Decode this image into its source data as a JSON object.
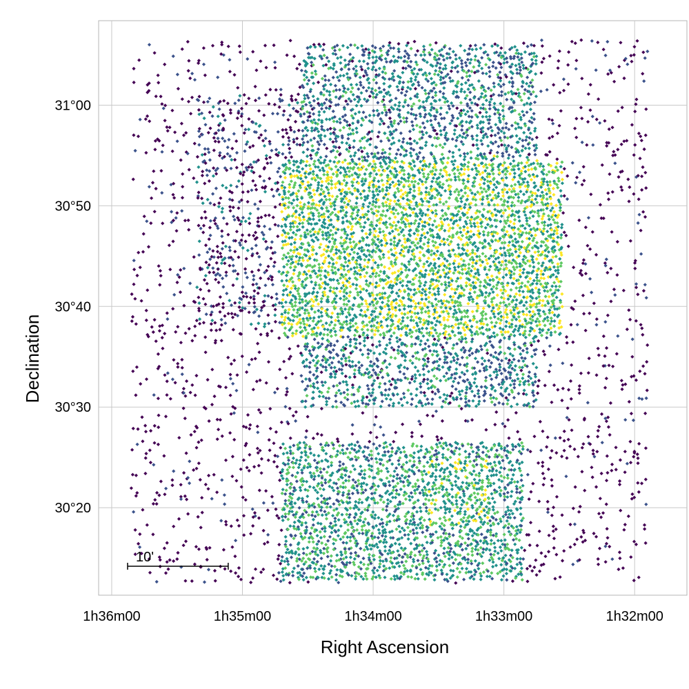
{
  "chart_data": {
    "type": "scatter",
    "title": "",
    "xlabel": "Right Ascension",
    "ylabel": "Declination",
    "x_axis_inverted": true,
    "x_ticks": [
      {
        "value_min": 96,
        "label": "1h36m00"
      },
      {
        "value_min": 95,
        "label": "1h35m00"
      },
      {
        "value_min": 94,
        "label": "1h34m00"
      },
      {
        "value_min": 93,
        "label": "1h33m00"
      },
      {
        "value_min": 92,
        "label": "1h32m00"
      }
    ],
    "y_ticks": [
      {
        "value_arcmin": 1860,
        "label": "31°00"
      },
      {
        "value_arcmin": 1850,
        "label": "30°50"
      },
      {
        "value_arcmin": 1840,
        "label": "30°40"
      },
      {
        "value_arcmin": 1830,
        "label": "30°30"
      },
      {
        "value_arcmin": 1820,
        "label": "30°20"
      }
    ],
    "xlim_min": [
      96.1,
      91.6
    ],
    "ylim_arcmin": [
      1811.3,
      1868.4
    ],
    "grid": true,
    "colormap": "viridis",
    "colors": [
      "#440154",
      "#3b528b",
      "#21918c",
      "#5ec962",
      "#fde725"
    ],
    "density_regions": [
      {
        "ra_min": [
          95.85,
          91.9
        ],
        "dec_arcmin": [
          1812.5,
          1866.5
        ],
        "density": 0.1
      },
      {
        "ra_min": [
          95.35,
          94.15
        ],
        "dec_arcmin": [
          1838,
          1861
        ],
        "density": 0.35
      },
      {
        "ra_min": [
          94.55,
          92.75
        ],
        "dec_arcmin": [
          1830,
          1866
        ],
        "density": 0.6
      },
      {
        "ra_min": [
          94.1,
          93.6
        ],
        "dec_arcmin": [
          1856,
          1866
        ],
        "density": 0.55
      },
      {
        "ra_min": [
          94.7,
          92.55
        ],
        "dec_arcmin": [
          1837,
          1854.5
        ],
        "density": 0.85
      },
      {
        "ra_min": [
          93.4,
          92.95
        ],
        "dec_arcmin": [
          1842,
          1855
        ],
        "density": 0.75
      },
      {
        "ra_min": [
          94.7,
          92.85
        ],
        "dec_arcmin": [
          1812.8,
          1826.5
        ],
        "density": 0.7
      },
      {
        "ra_min": [
          93.6,
          93.1
        ],
        "dec_arcmin": [
          1818,
          1825
        ],
        "density": 0.8
      }
    ],
    "scale_bar": {
      "label": "10'",
      "length_arcmin": 10
    }
  }
}
